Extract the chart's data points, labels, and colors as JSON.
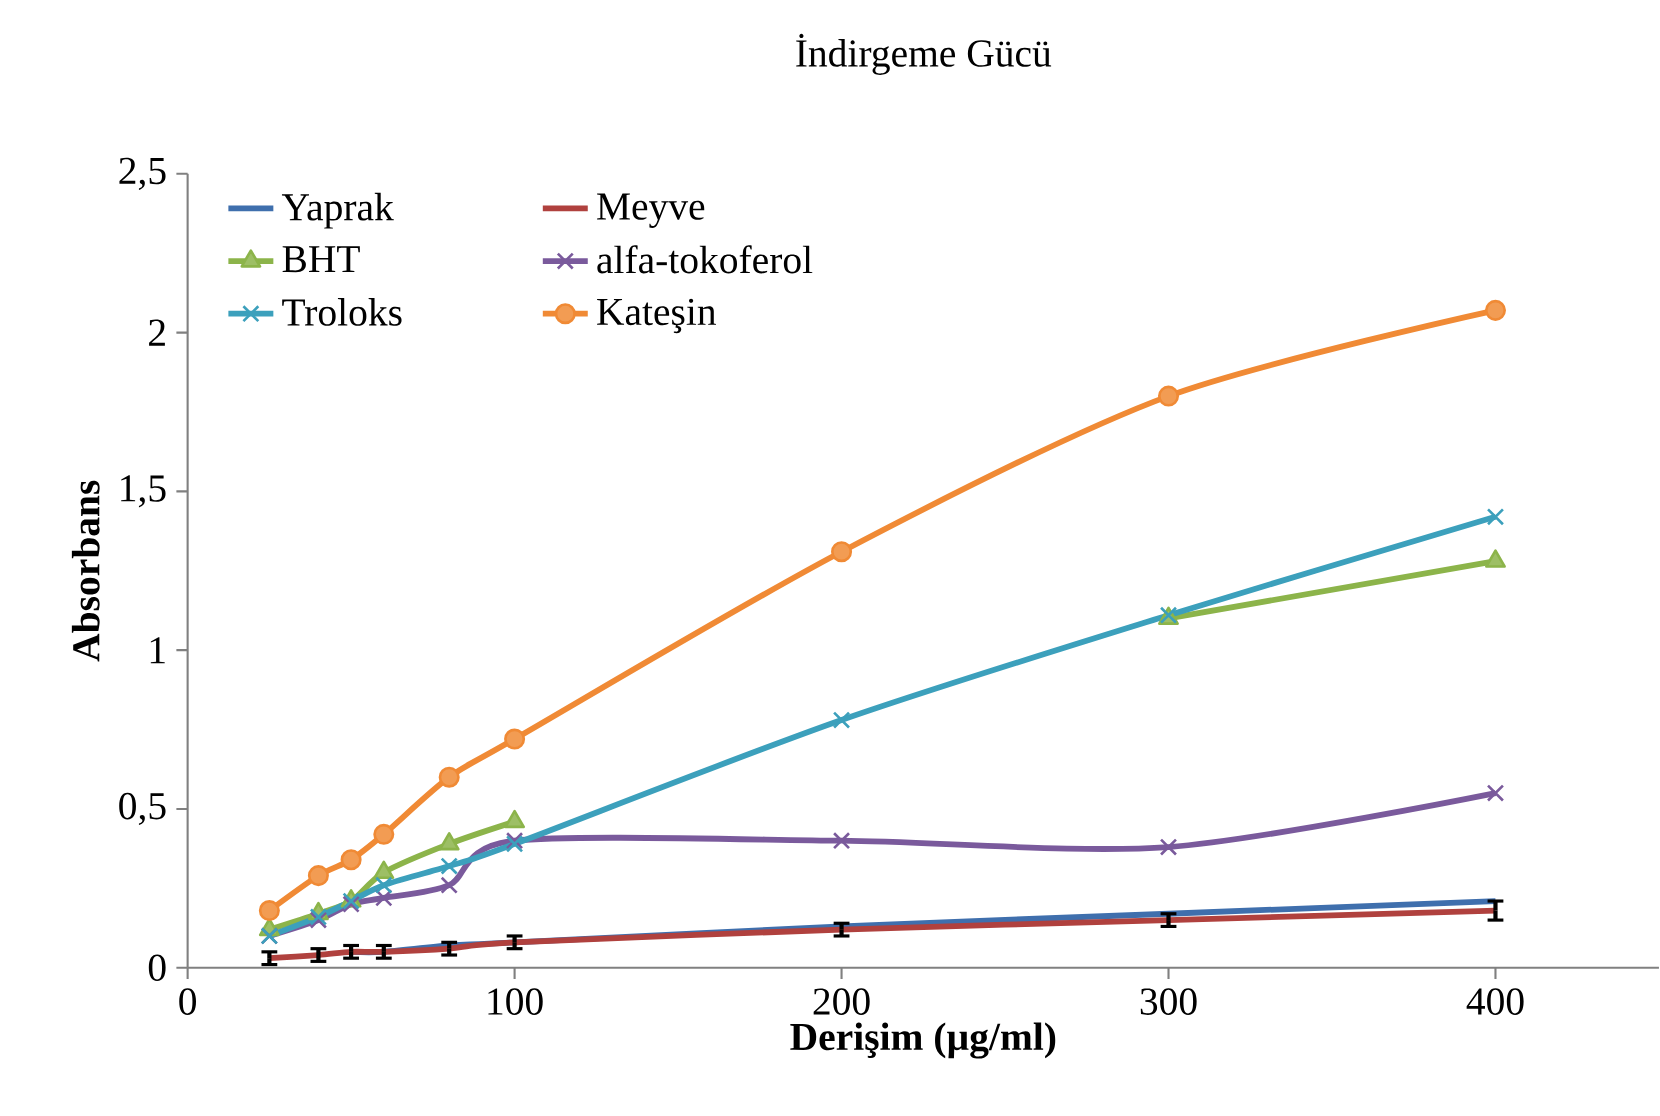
{
  "chart_data": {
    "type": "line",
    "title": "İndirgeme Gücü",
    "xlabel": "Derişim (µg/ml)",
    "ylabel": "Absorbans",
    "x": [
      25,
      40,
      50,
      60,
      80,
      100,
      200,
      300,
      400
    ],
    "xlim": [
      0,
      450
    ],
    "xticks": [
      0,
      100,
      200,
      300,
      400
    ],
    "ylim": [
      0,
      2.5
    ],
    "yticks": [
      0,
      {
        "value": 0.5,
        "label": "0,5"
      },
      1,
      {
        "value": 1.5,
        "label": "1,5"
      },
      2,
      {
        "value": 2.5,
        "label": "2,5"
      }
    ],
    "legend": "top left",
    "series": [
      {
        "name": "Yaprak",
        "color": "#3f6fad",
        "marker": "none",
        "values": [
          null,
          null,
          0.05,
          0.05,
          0.07,
          0.08,
          0.13,
          0.17,
          0.21
        ]
      },
      {
        "name": "Meyve",
        "color": "#b0413e",
        "marker": "none",
        "values": [
          0.03,
          0.04,
          0.05,
          0.05,
          0.06,
          0.08,
          0.12,
          0.15,
          0.18
        ],
        "errors": [
          0.02,
          0.02,
          0.02,
          0.02,
          0.02,
          0.02,
          0.02,
          0.02,
          0.03
        ]
      },
      {
        "name": "BHT",
        "color": "#8cb44a",
        "marker": "triangle",
        "values": [
          0.12,
          0.17,
          0.21,
          0.3,
          0.39,
          0.46,
          null,
          1.1,
          1.28
        ]
      },
      {
        "name": "alfa-tokoferol",
        "color": "#7a5a9c",
        "marker": "cross",
        "values": [
          0.1,
          0.15,
          0.2,
          0.22,
          0.26,
          0.4,
          0.4,
          0.38,
          0.55
        ]
      },
      {
        "name": "Troloks",
        "color": "#3ca0bc",
        "marker": "cross",
        "values": [
          0.1,
          0.16,
          0.21,
          0.26,
          0.32,
          0.39,
          0.78,
          1.11,
          1.42
        ]
      },
      {
        "name": "Kateşin",
        "color": "#f08a35",
        "marker": "circle",
        "values": [
          0.18,
          0.29,
          0.34,
          0.42,
          0.6,
          0.72,
          1.31,
          1.8,
          2.07
        ]
      }
    ]
  }
}
